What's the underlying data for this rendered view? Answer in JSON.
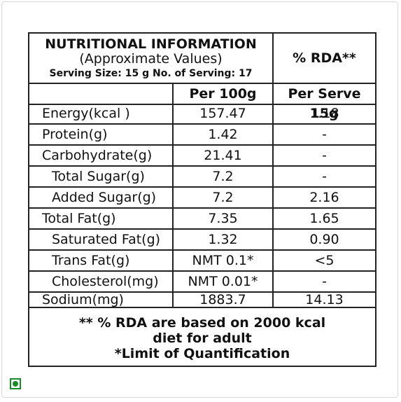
{
  "header": {
    "title": "NUTRITIONAL INFORMATION",
    "subtitle": "(Approximate Values)",
    "serving_line": "Serving Size:  15 g   No. of Serving: 17",
    "rda_heading": "% RDA**"
  },
  "columns": {
    "per100": "Per 100g",
    "perserve": "Per Serve 15g"
  },
  "rows": [
    {
      "nutrient": "Energy(kcal )",
      "per100": "157.47",
      "perserve": "1.18"
    },
    {
      "nutrient": "Protein(g)",
      "per100": "1.42",
      "perserve": "-"
    },
    {
      "nutrient": "Carbohydrate(g)",
      "per100": "21.41",
      "perserve": "-"
    },
    {
      "nutrient": "Total Sugar(g)",
      "per100": "7.2",
      "perserve": "-"
    },
    {
      "nutrient": "Added Sugar(g)",
      "per100": "7.2",
      "perserve": "2.16"
    },
    {
      "nutrient": "Total Fat(g)",
      "per100": "7.35",
      "perserve": "1.65"
    },
    {
      "nutrient": "Saturated Fat(g)",
      "per100": "1.32",
      "perserve": "0.90"
    },
    {
      "nutrient": "Trans Fat(g)",
      "per100": "NMT 0.1*",
      "perserve": "<5"
    },
    {
      "nutrient": "Cholesterol(mg)",
      "per100": "NMT 0.01*",
      "perserve": "-"
    },
    {
      "nutrient": "Sodium(mg)",
      "per100": "1883.7",
      "perserve": "14.13"
    }
  ],
  "footer": {
    "line1": "** % RDA are based on 2000 kcal",
    "line2": "diet for adult",
    "line3": "*Limit of Quantification"
  },
  "veg_mark": {
    "icon": "veg-symbol-icon",
    "color": "#1a8a2a"
  }
}
